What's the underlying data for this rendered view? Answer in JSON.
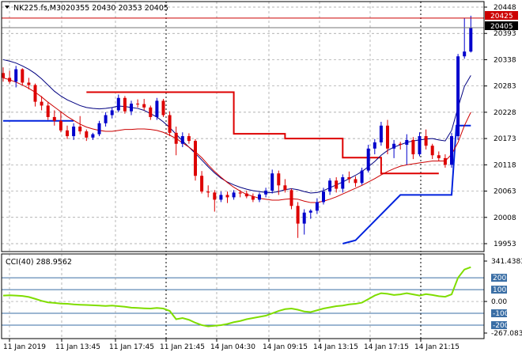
{
  "colors": {
    "bg": "#ffffff",
    "grid": "#9a9a9a",
    "frame": "#000000",
    "bull": "#0000cc",
    "bear": "#dd0000",
    "ma_fast": "#000080",
    "ma_slow": "#cc0000",
    "stop_up": "#0022dd",
    "stop_down": "#dd0000",
    "cci": "#7fdd00",
    "cci_level": "#3a6ea5",
    "ask_line": "#cc0000",
    "bid_line": "#777777"
  },
  "header": {
    "symbol_label": "NK225.fs,M30",
    "ohlc_label": "20355 20430 20353 20405"
  },
  "price_panel": {
    "y_ticks": [
      "20448",
      "20393",
      "20338",
      "20283",
      "20228",
      "20173",
      "20118",
      "20063",
      "20008",
      "19953"
    ],
    "ask_tag": "20425",
    "bid_tag": "20405",
    "grid": true
  },
  "cci_panel": {
    "title": "CCI(40) 288.9562",
    "y_ticks": [
      "341.4383",
      "200",
      "100",
      "0.00",
      "-100",
      "-200",
      "-267.083"
    ],
    "levels": [
      "200",
      "100",
      "-100",
      "-200"
    ]
  },
  "x_axis": {
    "labels": [
      "11 Jan 2019",
      "11 Jan 13:45",
      "11 Jan 17:45",
      "11 Jan 21:45",
      "14 Jan 04:30",
      "14 Jan 09:15",
      "14 Jan 13:15",
      "14 Jan 17:15",
      "14 Jan 21:15"
    ]
  },
  "chart_data": [
    {
      "type": "candlestick",
      "title": "NK225.fs,M30",
      "ylim": [
        19953,
        20448
      ],
      "series": [
        {
          "name": "NK225.fs",
          "ohlc": [
            [
              20310,
              20322,
              20292,
              20300
            ],
            [
              20300,
              20315,
              20288,
              20292
            ],
            [
              20292,
              20325,
              20280,
              20318
            ],
            [
              20318,
              20320,
              20285,
              20290
            ],
            [
              20290,
              20300,
              20276,
              20285
            ],
            [
              20285,
              20288,
              20240,
              20250
            ],
            [
              20250,
              20262,
              20232,
              20242
            ],
            [
              20242,
              20250,
              20212,
              20218
            ],
            [
              20218,
              20232,
              20200,
              20210
            ],
            [
              20210,
              20228,
              20186,
              20190
            ],
            [
              20190,
              20200,
              20172,
              20178
            ],
            [
              20178,
              20205,
              20170,
              20198
            ],
            [
              20198,
              20220,
              20182,
              20188
            ],
            [
              20188,
              20192,
              20168,
              20175
            ],
            [
              20175,
              20185,
              20170,
              20182
            ],
            [
              20182,
              20210,
              20178,
              20205
            ],
            [
              20205,
              20228,
              20198,
              20222
            ],
            [
              20222,
              20238,
              20215,
              20232
            ],
            [
              20232,
              20265,
              20228,
              20258
            ],
            [
              20258,
              20262,
              20225,
              20230
            ],
            [
              20230,
              20252,
              20222,
              20246
            ],
            [
              20246,
              20255,
              20238,
              20245
            ],
            [
              20245,
              20256,
              20232,
              20238
            ],
            [
              20238,
              20242,
              20212,
              20218
            ],
            [
              20218,
              20258,
              20212,
              20252
            ],
            [
              20252,
              20256,
              20218,
              20222
            ],
            [
              20222,
              20230,
              20178,
              20185
            ],
            [
              20185,
              20198,
              20138,
              20162
            ],
            [
              20162,
              20186,
              20155,
              20178
            ],
            [
              20178,
              20184,
              20162,
              20168
            ],
            [
              20168,
              20172,
              20085,
              20095
            ],
            [
              20095,
              20105,
              20058,
              20062
            ],
            [
              20062,
              20075,
              20050,
              20060
            ],
            [
              20060,
              20065,
              20020,
              20045
            ],
            [
              20045,
              20062,
              20040,
              20055
            ],
            [
              20055,
              20062,
              20038,
              20050
            ],
            [
              20050,
              20065,
              20045,
              20060
            ],
            [
              20060,
              20065,
              20050,
              20058
            ],
            [
              20058,
              20064,
              20048,
              20052
            ],
            [
              20052,
              20058,
              20040,
              20045
            ],
            [
              20045,
              20060,
              20040,
              20056
            ],
            [
              20056,
              20070,
              20050,
              20064
            ],
            [
              20064,
              20108,
              20058,
              20100
            ],
            [
              20100,
              20106,
              20055,
              20075
            ],
            [
              20075,
              20088,
              20060,
              20065
            ],
            [
              20065,
              20068,
              20025,
              20032
            ],
            [
              20032,
              20040,
              19965,
              19995
            ],
            [
              19995,
              20025,
              19972,
              20018
            ],
            [
              20018,
              20025,
              20005,
              20022
            ],
            [
              20022,
              20048,
              20015,
              20040
            ],
            [
              20040,
              20070,
              20035,
              20062
            ],
            [
              20062,
              20090,
              20055,
              20085
            ],
            [
              20085,
              20092,
              20060,
              20068
            ],
            [
              20068,
              20098,
              20060,
              20092
            ],
            [
              20092,
              20104,
              20080,
              20088
            ],
            [
              20088,
              20094,
              20072,
              20080
            ],
            [
              20080,
              20112,
              20076,
              20106
            ],
            [
              20106,
              20160,
              20102,
              20152
            ],
            [
              20152,
              20172,
              20140,
              20165
            ],
            [
              20165,
              20208,
              20158,
              20200
            ],
            [
              20200,
              20212,
              20140,
              20152
            ],
            [
              20152,
              20170,
              20132,
              20162
            ],
            [
              20162,
              20166,
              20150,
              20160
            ],
            [
              20160,
              20182,
              20118,
              20170
            ],
            [
              20170,
              20176,
              20130,
              20140
            ],
            [
              20140,
              20186,
              20136,
              20178
            ],
            [
              20178,
              20192,
              20150,
              20158
            ],
            [
              20158,
              20162,
              20130,
              20138
            ],
            [
              20138,
              20146,
              20126,
              20132
            ],
            [
              20132,
              20140,
              20112,
              20118
            ],
            [
              20118,
              20185,
              20112,
              20178
            ],
            [
              20178,
              20350,
              20170,
              20345
            ],
            [
              20345,
              20425,
              20340,
              20355
            ],
            [
              20355,
              20430,
              20353,
              20405
            ]
          ]
        },
        {
          "name": "ma_fast",
          "values": [
            20338,
            20335,
            20331,
            20325,
            20318,
            20309,
            20298,
            20285,
            20272,
            20262,
            20254,
            20248,
            20242,
            20238,
            20236,
            20235,
            20236,
            20238,
            20241,
            20240,
            20238,
            20236,
            20232,
            20225,
            20218,
            20208,
            20196,
            20182,
            20168,
            20155,
            20142,
            20128,
            20114,
            20101,
            20090,
            20082,
            20076,
            20071,
            20067,
            20064,
            20062,
            20060,
            20060,
            20062,
            20066,
            20068,
            20066,
            20062,
            20059,
            20060,
            20064,
            20070,
            20076,
            20082,
            20089,
            20096,
            20104,
            20114,
            20125,
            20138,
            20148,
            20155,
            20160,
            20165,
            20168,
            20170,
            20172,
            20173,
            20170,
            20168,
            20190,
            20238,
            20282,
            20305
          ]
        },
        {
          "name": "ma_slow",
          "values": [
            20300,
            20296,
            20291,
            20285,
            20278,
            20270,
            20260,
            20249,
            20239,
            20229,
            20219,
            20211,
            20203,
            20197,
            20193,
            20190,
            20188,
            20188,
            20190,
            20192,
            20192,
            20193,
            20193,
            20192,
            20190,
            20186,
            20180,
            20173,
            20164,
            20155,
            20145,
            20133,
            20118,
            20104,
            20092,
            20081,
            20071,
            20063,
            20056,
            20052,
            20048,
            20046,
            20044,
            20044,
            20046,
            20047,
            20046,
            20042,
            20039,
            20039,
            20042,
            20046,
            20051,
            20057,
            20063,
            20069,
            20075,
            20082,
            20089,
            20097,
            20104,
            20110,
            20115,
            20118,
            20120,
            20122,
            20124,
            20126,
            20126,
            20126,
            20140,
            20165,
            20200,
            20228
          ]
        },
        {
          "name": "stop_up",
          "segments": [
            {
              "from": 0,
              "to": 11,
              "value": 20210
            },
            {
              "from": 62,
              "to": 70,
              "value": 20055
            },
            {
              "from": 70,
              "to": 73,
              "value": 20200
            }
          ]
        },
        {
          "name": "stop_down",
          "segments": [
            {
              "from": 13,
              "to": 36,
              "value": 20270
            },
            {
              "from": 36,
              "to": 44,
              "value": 20183
            },
            {
              "from": 44,
              "to": 53,
              "value": 20173
            },
            {
              "from": 53,
              "to": 59,
              "value": 20133
            },
            {
              "from": 59,
              "to": 68,
              "value": 20100
            }
          ]
        }
      ]
    },
    {
      "type": "line",
      "title": "CCI(40) 288.9562",
      "ylim": [
        -267.083,
        341.4383
      ],
      "series": [
        {
          "name": "CCI(40)",
          "values": [
            50,
            52,
            50,
            46,
            38,
            22,
            5,
            -8,
            -12,
            -18,
            -20,
            -25,
            -28,
            -30,
            -32,
            -35,
            -38,
            -35,
            -40,
            -45,
            -52,
            -55,
            -58,
            -60,
            -55,
            -60,
            -80,
            -150,
            -140,
            -155,
            -180,
            -200,
            -210,
            -205,
            -200,
            -190,
            -175,
            -165,
            -150,
            -140,
            -130,
            -120,
            -100,
            -80,
            -65,
            -60,
            -70,
            -85,
            -90,
            -75,
            -60,
            -50,
            -40,
            -35,
            -25,
            -20,
            -10,
            20,
            50,
            70,
            65,
            55,
            60,
            70,
            60,
            50,
            62,
            55,
            45,
            40,
            60,
            200,
            270,
            290
          ]
        }
      ]
    }
  ]
}
